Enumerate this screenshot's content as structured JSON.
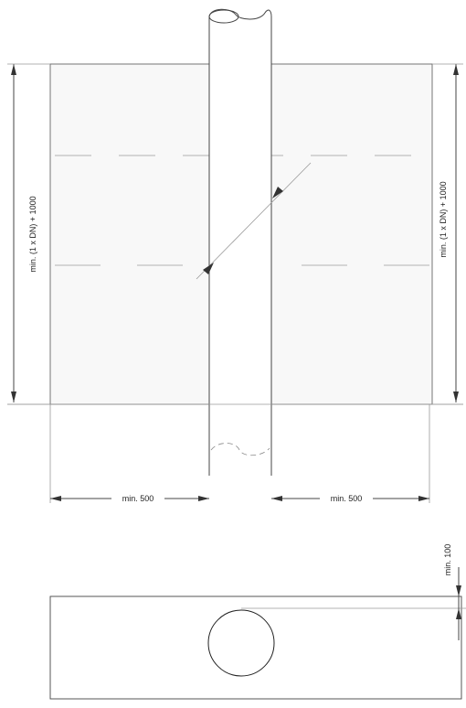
{
  "labels": {
    "height_left": "min. (1 x DN) + 1000",
    "height_right": "min. (1 x DN) + 1000",
    "width_left": "min. 500",
    "width_right": "min. 500",
    "cover_depth": "min. 100"
  },
  "colors": {
    "line": "#444444",
    "light_fill": "#f7f7f7"
  }
}
